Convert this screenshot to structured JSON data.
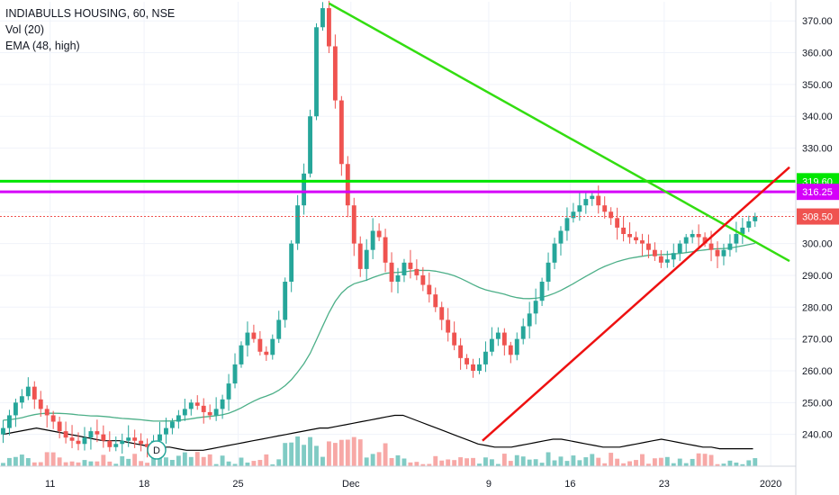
{
  "legend": {
    "symbol": "INDIABULLS HOUSING, 60, NSE",
    "volume": "Vol (20)",
    "ema": "EMA (48, high)"
  },
  "colors": {
    "up": "#26a69a",
    "down": "#ef5350",
    "volume_up": "#80cbc4",
    "volume_down": "#f7a8a6",
    "ema": "#4caf88",
    "vol_ma": "#000000",
    "resistance_line": "#00e600",
    "magenta_line": "#d500f9",
    "descending_trend": "#33dd11",
    "ascending_trend": "#ee1111",
    "last_price_tag": "#ef5350",
    "grid": "#f0f3fa"
  },
  "chart_data": {
    "type": "candlestick",
    "title": "INDIABULLS HOUSING, 60, NSE",
    "ylim": [
      230,
      376
    ],
    "y_ticks": [
      240,
      250,
      260,
      270,
      280,
      290,
      300,
      310,
      320,
      330,
      340,
      350,
      360,
      370
    ],
    "y_tick_labels": [
      "240.00",
      "250.00",
      "260.00",
      "270.00",
      "280.00",
      "290.00",
      "300.00",
      "310.00",
      "320.00",
      "330.00",
      "340.00",
      "350.00",
      "360.00",
      "370.00"
    ],
    "x_tick_labels": [
      "11",
      "18",
      "25",
      "Dec",
      "9",
      "16",
      "23",
      "2020"
    ],
    "x_tick_positions": [
      12,
      27,
      42,
      60,
      82,
      95,
      110,
      127
    ],
    "x_range": [
      4,
      131
    ],
    "horizontal_levels": [
      {
        "name": "resistance",
        "value": 319.6,
        "label": "319.60",
        "color_key": "resistance_line"
      },
      {
        "name": "magenta",
        "value": 316.25,
        "label": "316.25",
        "color_key": "magenta_line"
      },
      {
        "name": "last_price",
        "value": 308.5,
        "label": "308.50",
        "color_key": "last_price_tag",
        "dotted": true
      }
    ],
    "trendlines": [
      {
        "name": "descending",
        "x1": 56.5,
        "y1": 375.5,
        "x2": 130,
        "y2": 294.5,
        "color_key": "descending_trend"
      },
      {
        "name": "ascending",
        "x1": 81,
        "y1": 238,
        "x2": 130,
        "y2": 324,
        "color_key": "ascending_trend"
      }
    ],
    "event_marker": {
      "label": "D",
      "x": 29
    },
    "closes": [
      242,
      246,
      250,
      252,
      255,
      251,
      248,
      246,
      244,
      241,
      239,
      238,
      237,
      239,
      241,
      240,
      238,
      236,
      237,
      238,
      239,
      238,
      237,
      236,
      238,
      240,
      242,
      244,
      246,
      248,
      250,
      249,
      247,
      246,
      248,
      251,
      256,
      262,
      268,
      272,
      270,
      266,
      265,
      270,
      276,
      288,
      300,
      312,
      322,
      340,
      368,
      374,
      362,
      345,
      325,
      312,
      300,
      292,
      298,
      304,
      302,
      294,
      288,
      290,
      294,
      292,
      290,
      287,
      284,
      280,
      276,
      272,
      268,
      264,
      262,
      260,
      262,
      266,
      270,
      272,
      268,
      265,
      270,
      274,
      278,
      282,
      288,
      294,
      300,
      304,
      308,
      310,
      312,
      314,
      315,
      312,
      310,
      308,
      305,
      303,
      302,
      301,
      300,
      298,
      296,
      294,
      295,
      297,
      300,
      302,
      303,
      302,
      300,
      298,
      296,
      298,
      300,
      303,
      305,
      307,
      308.5
    ],
    "volume_ma_y": [
      240,
      240.5,
      241,
      241.5,
      242,
      241.5,
      241,
      240.5,
      240,
      239.5,
      239,
      238.5,
      238,
      238,
      238,
      237.5,
      237,
      236.5,
      236,
      236,
      236,
      235.5,
      235,
      235,
      235,
      235.5,
      236,
      236.5,
      237,
      237.5,
      238,
      238.5,
      239,
      239.5,
      240,
      240.5,
      241,
      241.5,
      242,
      242,
      242.5,
      243,
      243.5,
      244,
      244.5,
      245,
      245.5,
      246,
      246,
      245,
      244,
      243,
      242,
      241,
      240,
      239,
      238,
      237,
      236.5,
      236,
      236,
      236,
      236.5,
      237,
      237.5,
      238,
      238.5,
      238.5,
      238,
      237.5,
      237,
      236.5,
      236,
      236,
      236,
      236.5,
      237,
      237.5,
      238,
      238.5,
      238,
      237.5,
      237,
      236.5,
      236,
      236,
      235.5,
      235.5,
      235.5,
      235.5,
      235.5
    ]
  }
}
